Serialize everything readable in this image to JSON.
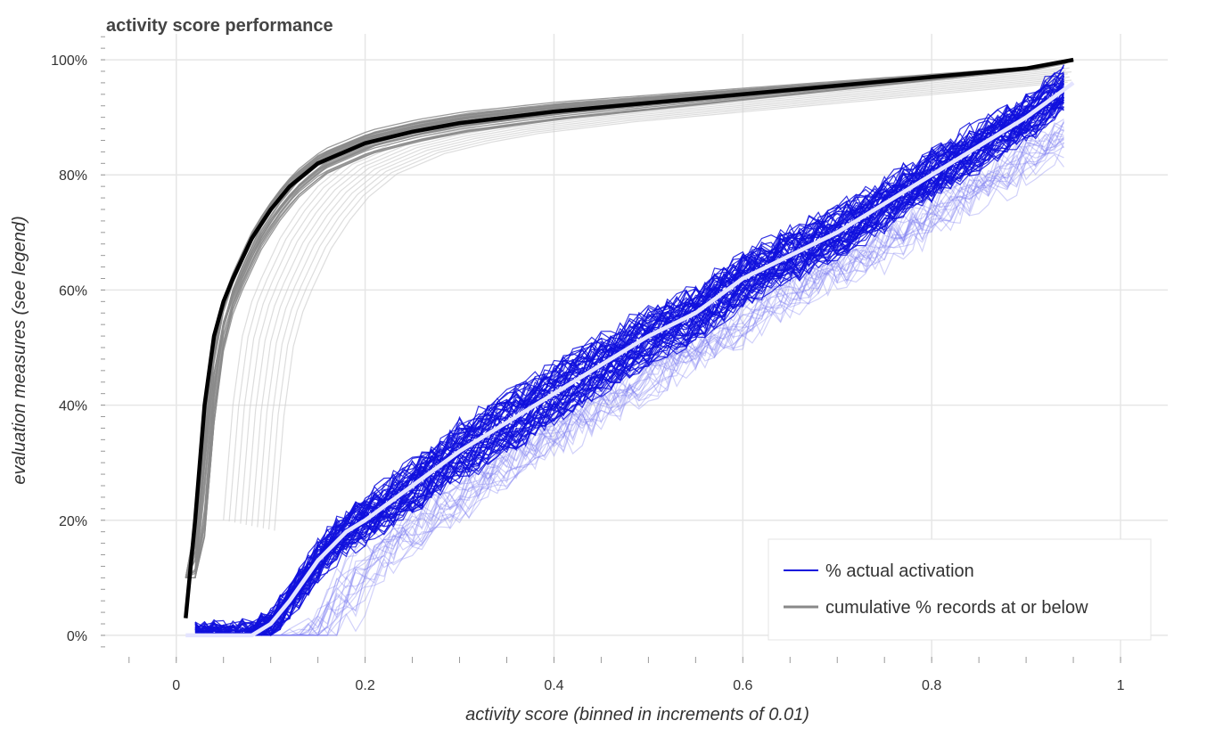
{
  "chart_data": {
    "type": "line",
    "title": "activity score performance",
    "xlabel": "activity score (binned in increments of 0.01)",
    "ylabel": "evaluation measures (see legend)",
    "xlim": [
      -0.08,
      1.05
    ],
    "ylim": [
      -0.045,
      1.045
    ],
    "x_ticks": [
      0,
      0.2,
      0.4,
      0.6,
      0.8,
      1
    ],
    "x_tick_labels": [
      "0",
      "0.2",
      "0.4",
      "0.6",
      "0.8",
      "1"
    ],
    "y_ticks": [
      0,
      0.2,
      0.4,
      0.6,
      0.8,
      1.0
    ],
    "y_tick_labels": [
      "0%",
      "20%",
      "40%",
      "60%",
      "80%",
      "100%"
    ],
    "grid": true,
    "legend": {
      "position": "bottom-right",
      "items": [
        {
          "label": "% actual activation",
          "color": "#1111dd"
        },
        {
          "label": "cumulative % records at or below",
          "color": "#888888"
        }
      ]
    },
    "colors": {
      "activation": "#1111dd",
      "activation_mean": "#e4e4ff",
      "cumulative": "#8a8a8a",
      "cumulative_light": "#cfcfcf",
      "cumulative_mean": "#000000"
    },
    "series_groups": {
      "activation_runs": 60,
      "activation_faded_runs": 20,
      "cumulative_runs": 30,
      "cumulative_faded_runs": 10
    },
    "series": [
      {
        "role": "cumulative-mean",
        "x": [
          0.01,
          0.02,
          0.03,
          0.04,
          0.05,
          0.06,
          0.08,
          0.1,
          0.12,
          0.15,
          0.2,
          0.25,
          0.3,
          0.35,
          0.4,
          0.5,
          0.6,
          0.7,
          0.8,
          0.9,
          0.95
        ],
        "values": [
          0.03,
          0.2,
          0.4,
          0.52,
          0.58,
          0.62,
          0.69,
          0.74,
          0.78,
          0.82,
          0.855,
          0.875,
          0.89,
          0.9,
          0.91,
          0.925,
          0.94,
          0.955,
          0.97,
          0.985,
          1.0
        ]
      },
      {
        "role": "activation-mean",
        "x": [
          0.01,
          0.05,
          0.08,
          0.1,
          0.12,
          0.15,
          0.18,
          0.2,
          0.25,
          0.3,
          0.35,
          0.4,
          0.45,
          0.5,
          0.55,
          0.6,
          0.65,
          0.7,
          0.75,
          0.8,
          0.85,
          0.9,
          0.95
        ],
        "values": [
          0.0,
          0.0,
          0.0,
          0.02,
          0.06,
          0.13,
          0.18,
          0.2,
          0.26,
          0.32,
          0.37,
          0.42,
          0.47,
          0.52,
          0.56,
          0.62,
          0.66,
          0.7,
          0.75,
          0.8,
          0.85,
          0.9,
          0.96
        ]
      }
    ]
  }
}
